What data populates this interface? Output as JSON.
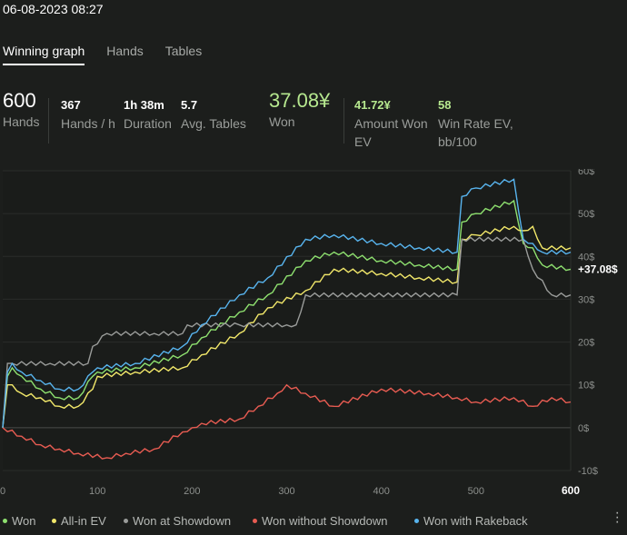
{
  "header": {
    "datetime": "06-08-2023 08:27"
  },
  "tabs": [
    {
      "label": "Winning graph",
      "active": true
    },
    {
      "label": "Hands",
      "active": false
    },
    {
      "label": "Tables",
      "active": false
    }
  ],
  "stats": {
    "hands": {
      "value": "600",
      "label": "Hands"
    },
    "hands_per_hour": {
      "value": "367",
      "label": "Hands / h"
    },
    "duration": {
      "value": "1h 38m",
      "label": "Duration"
    },
    "avg_tables": {
      "value": "5.7",
      "label": "Avg. Tables"
    },
    "won": {
      "value": "37.08¥",
      "label": "Won"
    },
    "amount_won_ev": {
      "value": "41.72¥",
      "label": "Amount Won EV"
    },
    "win_rate_ev": {
      "value": "58",
      "label": "Win Rate EV, bb/100"
    }
  },
  "chart_data": {
    "type": "line",
    "x_ticks": [
      "0",
      "100",
      "200",
      "300",
      "400",
      "500",
      "600"
    ],
    "y_ticks": [
      "60$",
      "50$",
      "40$",
      "30$",
      "20$",
      "10$",
      "0$",
      "-10$"
    ],
    "xlim": [
      0,
      600
    ],
    "ylim": [
      -10,
      60
    ],
    "end_label": "+37.08$",
    "x_end_label": "600",
    "series": [
      {
        "name": "Won",
        "color": "#8ee06f",
        "x": [
          0,
          5,
          10,
          20,
          40,
          60,
          80,
          95,
          100,
          140,
          190,
          210,
          250,
          280,
          320,
          350,
          400,
          440,
          480,
          485,
          500,
          540,
          550,
          560,
          570,
          600
        ],
        "y": [
          0,
          12,
          14,
          12,
          9,
          7,
          7,
          12,
          13,
          14,
          17,
          21,
          27,
          31,
          39,
          41,
          39,
          38,
          37,
          48,
          50,
          53,
          43,
          42,
          38,
          37
        ]
      },
      {
        "name": "All-in EV",
        "color": "#f2e86a",
        "x": [
          0,
          5,
          10,
          20,
          40,
          60,
          80,
          95,
          100,
          140,
          190,
          210,
          250,
          280,
          320,
          350,
          400,
          440,
          480,
          485,
          500,
          540,
          550,
          560,
          570,
          600
        ],
        "y": [
          0,
          10,
          10,
          8,
          7,
          5,
          5,
          9,
          12,
          13,
          14,
          17,
          22,
          28,
          32,
          37,
          36,
          35,
          34,
          44,
          45,
          47,
          46,
          47,
          42,
          42
        ]
      },
      {
        "name": "Won at Showdown",
        "color": "#9a9c9a",
        "x": [
          0,
          5,
          10,
          50,
          90,
          95,
          110,
          160,
          190,
          195,
          250,
          300,
          310,
          320,
          480,
          485,
          550,
          560,
          580,
          600
        ],
        "y": [
          0,
          15,
          15,
          15,
          15,
          19,
          22,
          22,
          22,
          24,
          24,
          24,
          24,
          31,
          31,
          44,
          44,
          37,
          31,
          31
        ]
      },
      {
        "name": "Won without Showdown",
        "color": "#e85c52",
        "x": [
          0,
          20,
          40,
          60,
          80,
          110,
          130,
          160,
          190,
          200,
          210,
          250,
          270,
          290,
          300,
          320,
          350,
          400,
          450,
          480,
          500,
          540,
          560,
          580,
          600
        ],
        "y": [
          0,
          -2,
          -4,
          -5,
          -6,
          -7,
          -6,
          -5,
          -1,
          0,
          1,
          2,
          5,
          8,
          10,
          8,
          5,
          9,
          8,
          7,
          6,
          7,
          5,
          7,
          6
        ]
      },
      {
        "name": "Won with Rakeback",
        "color": "#58b4ee",
        "x": [
          0,
          5,
          10,
          20,
          40,
          60,
          80,
          95,
          100,
          140,
          190,
          210,
          250,
          280,
          320,
          350,
          400,
          440,
          480,
          485,
          500,
          540,
          550,
          560,
          570,
          600
        ],
        "y": [
          0,
          13,
          15,
          13,
          11,
          9,
          9,
          13,
          14,
          15,
          19,
          24,
          31,
          35,
          44,
          45,
          43,
          42,
          41,
          54,
          56,
          58,
          44,
          43,
          41,
          41
        ]
      }
    ]
  },
  "legend": [
    {
      "label": "Won",
      "color": "#8ee06f"
    },
    {
      "label": "All-in EV",
      "color": "#f2e86a"
    },
    {
      "label": "Won at Showdown",
      "color": "#9a9c9a"
    },
    {
      "label": "Won without Showdown",
      "color": "#e85c52"
    },
    {
      "label": "Won with Rakeback",
      "color": "#58b4ee"
    }
  ],
  "menu_icon": "vertical-dots-icon"
}
